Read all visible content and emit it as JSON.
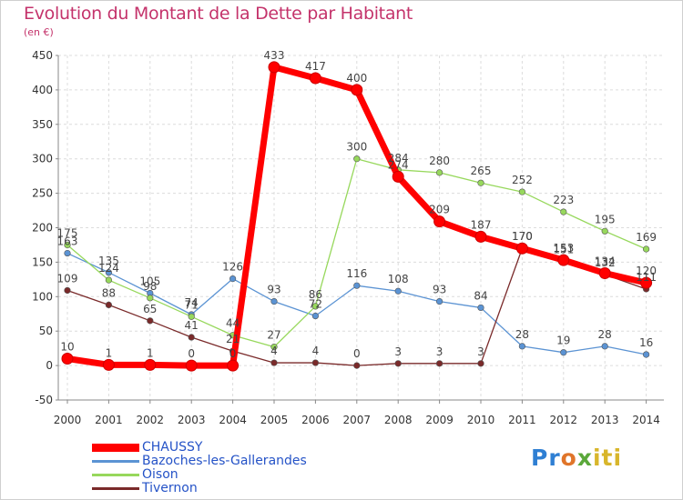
{
  "header": {
    "title": "Evolution du Montant de la Dette par Habitant",
    "unit": "(en €)"
  },
  "logo": {
    "parts": [
      "Pr",
      "o",
      "x",
      "iti"
    ]
  },
  "chart_data": {
    "type": "line",
    "title": "Evolution du Montant de la Dette par Habitant",
    "ylabel": "(en €)",
    "xlabel": "",
    "ylim": [
      -50,
      450
    ],
    "yticks": [
      -50,
      0,
      50,
      100,
      150,
      200,
      250,
      300,
      350,
      400,
      450
    ],
    "grid": true,
    "legend_position": "bottom-left",
    "x": [
      "2000",
      "2001",
      "2002",
      "2003",
      "2004",
      "2005",
      "2006",
      "2007",
      "2008",
      "2009",
      "2010",
      "2011",
      "2012",
      "2013",
      "2014"
    ],
    "series": [
      {
        "name": "CHAUSSY",
        "color": "#ff0000",
        "values": [
          10,
          1,
          1,
          0,
          0,
          433,
          417,
          400,
          274,
          209,
          187,
          170,
          153,
          134,
          120
        ]
      },
      {
        "name": "Bazoches-les-Gallerandes",
        "color": "#5b93d3",
        "values": [
          163,
          135,
          105,
          74,
          126,
          93,
          72,
          116,
          108,
          93,
          84,
          28,
          19,
          28,
          16
        ]
      },
      {
        "name": "Oison",
        "color": "#97d85c",
        "values": [
          175,
          124,
          98,
          71,
          44,
          27,
          86,
          300,
          284,
          280,
          265,
          252,
          223,
          195,
          169
        ]
      },
      {
        "name": "Tivernon",
        "color": "#7a2a2a",
        "values": [
          109,
          88,
          65,
          41,
          21,
          4,
          4,
          0,
          3,
          3,
          3,
          170,
          151,
          132,
          111
        ]
      }
    ]
  }
}
